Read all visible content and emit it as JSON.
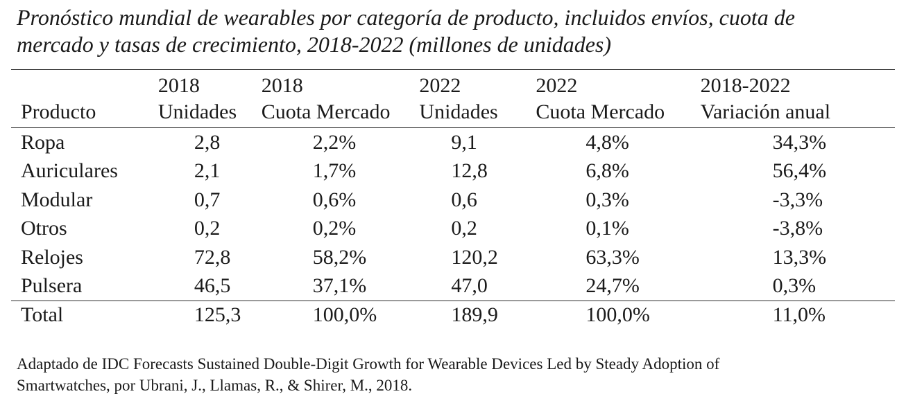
{
  "caption": {
    "line1": "Pronóstico mundial de wearables por categoría de producto, incluidos envíos, cuota de",
    "line2": "mercado y tasas de crecimiento, 2018-2022 (millones de unidades)"
  },
  "table": {
    "header_top": [
      "",
      "2018",
      "2018",
      "2022",
      "2022",
      "2018-2022"
    ],
    "header_bottom": [
      "Producto",
      "Unidades",
      "Cuota Mercado",
      "Unidades",
      "Cuota Mercado",
      "Variación anual"
    ],
    "rows": [
      [
        "Ropa",
        "2,8",
        "2,2%",
        "9,1",
        "4,8%",
        "34,3%"
      ],
      [
        "Auriculares",
        "2,1",
        "1,7%",
        "12,8",
        "6,8%",
        "56,4%"
      ],
      [
        "Modular",
        "0,7",
        "0,6%",
        "0,6",
        "0,3%",
        "-3,3%"
      ],
      [
        "Otros",
        "0,2",
        "0,2%",
        "0,2",
        "0,1%",
        "-3,8%"
      ],
      [
        "Relojes",
        "72,8",
        "58,2%",
        "120,2",
        "63,3%",
        "13,3%"
      ],
      [
        "Pulsera",
        "46,5",
        "37,1%",
        "47,0",
        "24,7%",
        "0,3%"
      ]
    ],
    "total": [
      "Total",
      "125,3",
      "100,0%",
      "189,9",
      "100,0%",
      "11,0%"
    ]
  },
  "footnote": {
    "line1": "Adaptado de IDC Forecasts Sustained Double-Digit Growth for Wearable Devices Led by Steady Adoption of",
    "line2": "Smartwatches, por Ubrani, J., Llamas, R., & Shirer, M., 2018."
  }
}
